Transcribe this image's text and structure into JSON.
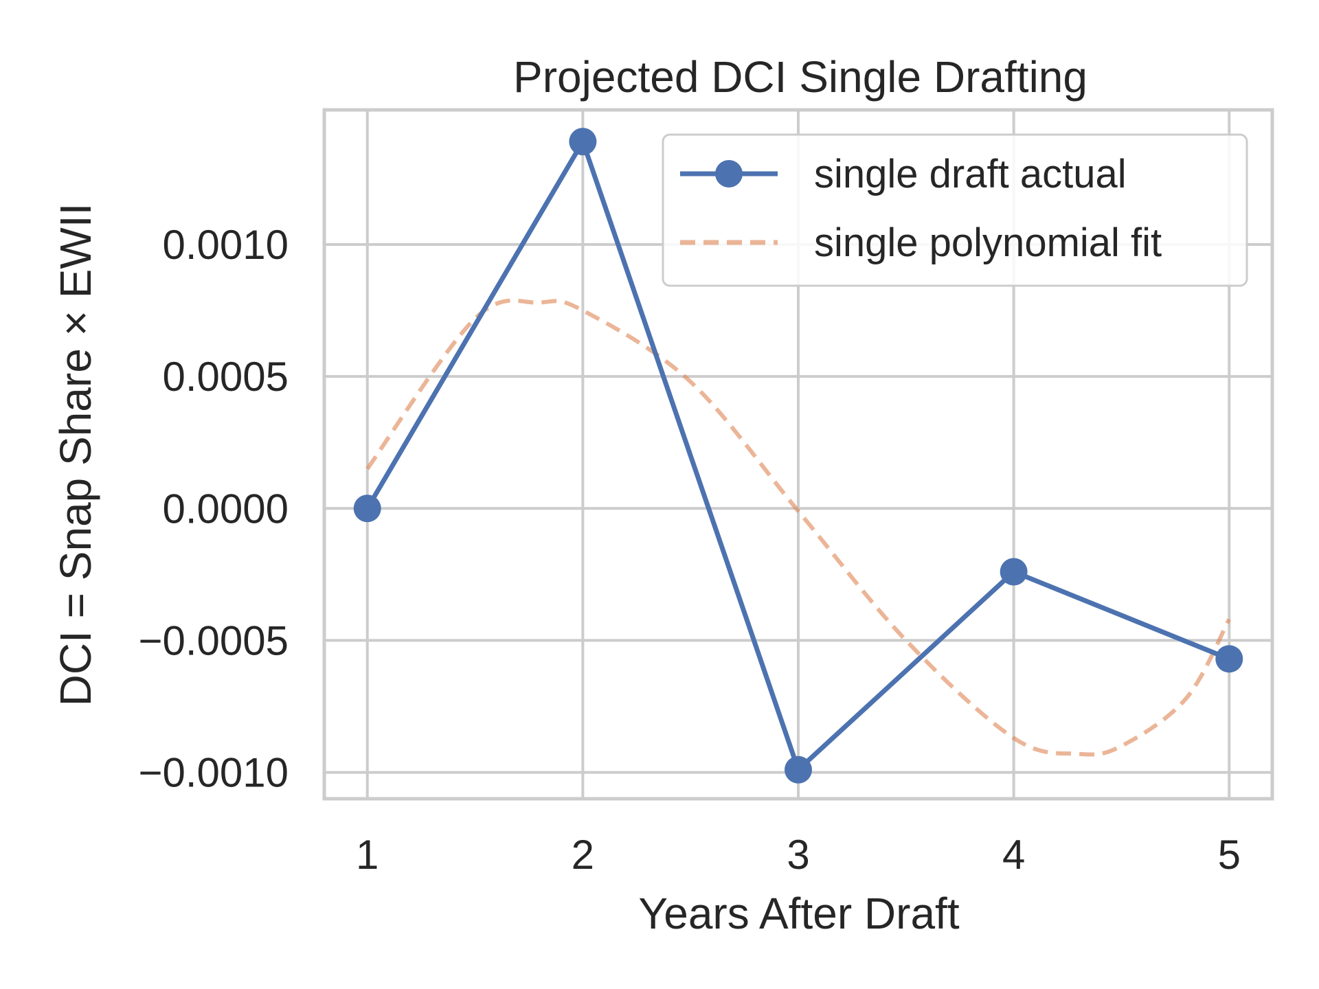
{
  "chart_data": {
    "type": "line",
    "title": "Projected DCI Single Drafting",
    "xlabel": "Years After Draft",
    "ylabel": "DCI = Snap Share × EWII",
    "xlim": [
      0.8,
      5.2
    ],
    "ylim": [
      -0.0011,
      0.00151
    ],
    "x_ticks": [
      1,
      2,
      3,
      4,
      5
    ],
    "y_ticks": [
      -0.001,
      -0.0005,
      0.0,
      0.0005,
      0.001
    ],
    "y_tick_labels": [
      "−0.0010",
      "−0.0005",
      "0.0000",
      "0.0005",
      "0.0010"
    ],
    "grid": true,
    "legend_position": "top-right",
    "series": [
      {
        "name": "single draft actual",
        "style": "solid-with-markers",
        "color": "#4c72b0",
        "x": [
          1,
          2,
          3,
          4,
          5
        ],
        "y": [
          0.0,
          0.00139,
          -0.00099,
          -0.00024,
          -0.00057
        ]
      },
      {
        "name": "single polynomial fit",
        "style": "dashed",
        "color": "#dd8452",
        "x": [
          1,
          1.5,
          1.8,
          2,
          2.5,
          3,
          3.5,
          4,
          4.3,
          4.5,
          4.8,
          5
        ],
        "y": [
          0.00015,
          0.00072,
          0.00078,
          0.00075,
          0.00048,
          -1e-05,
          -0.0005,
          -0.00087,
          -0.00093,
          -0.0009,
          -0.00072,
          -0.00042
        ]
      }
    ]
  }
}
